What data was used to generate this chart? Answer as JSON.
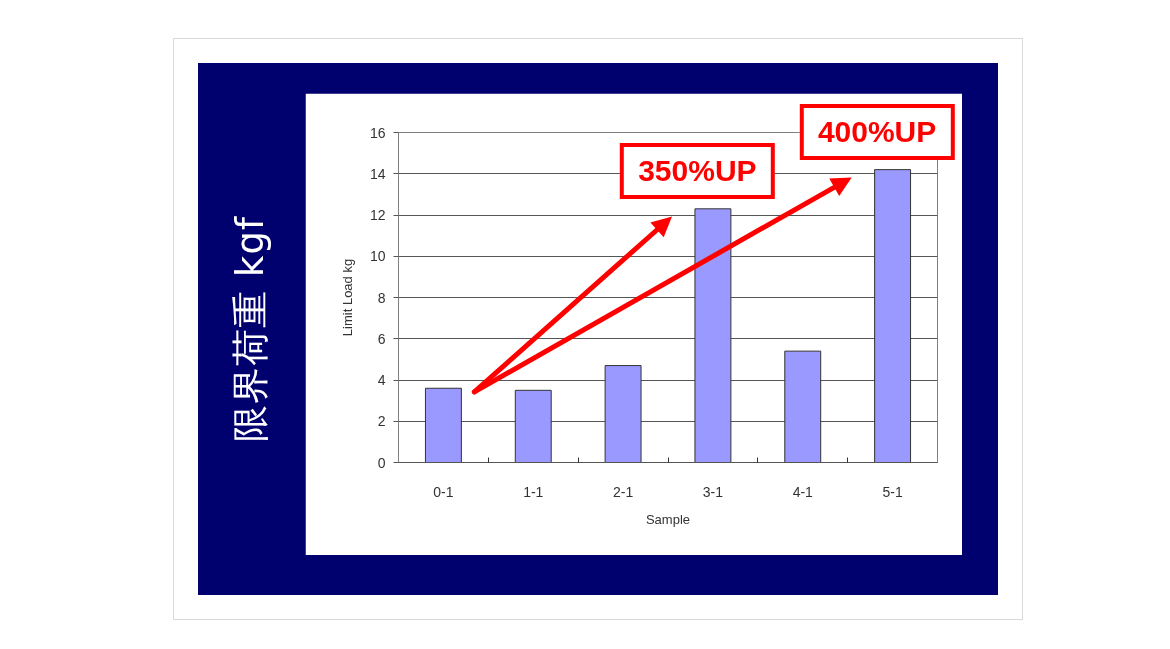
{
  "chart_data": {
    "type": "bar",
    "xlabel": "Sample",
    "ylabel": "Limit Load kg",
    "categories": [
      "0-1",
      "1-1",
      "2-1",
      "3-1",
      "4-1",
      "5-1"
    ],
    "values": [
      3.6,
      3.5,
      4.7,
      12.3,
      5.4,
      14.2
    ],
    "color": "#9999ff",
    "ylim": [
      0,
      16
    ],
    "yticks": [
      0,
      2,
      4,
      6,
      8,
      10,
      12,
      14,
      16
    ],
    "grid": "y",
    "annotations": [
      "限界荷重 kgf",
      {
        "text": "350%UP",
        "x": "3-1",
        "y": 12.3
      },
      {
        "text": "400%UP",
        "x": "5-1",
        "y": 14.2
      }
    ]
  }
}
